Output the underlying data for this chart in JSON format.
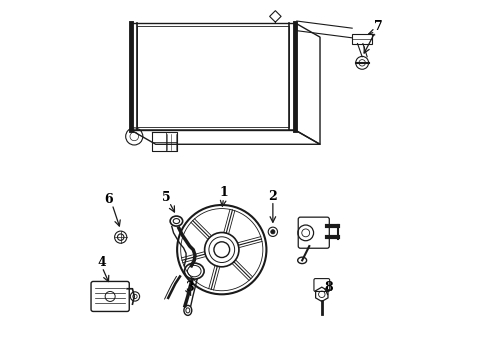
{
  "bg_color": "#ffffff",
  "line_color": "#1a1a1a",
  "label_color": "#000000"
}
